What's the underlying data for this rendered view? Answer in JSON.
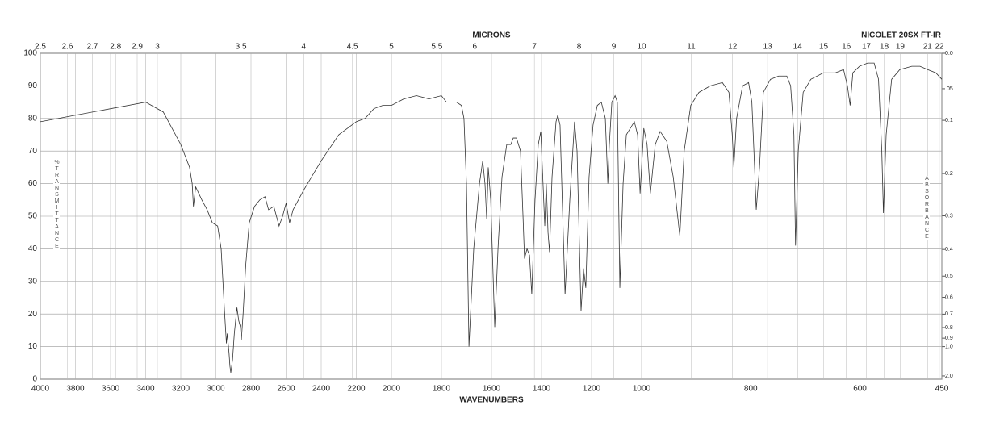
{
  "chart_data": {
    "type": "line",
    "title": "NICOLET 20SX FT-IR",
    "xlabel": "WAVENUMBERS",
    "x2label": "MICRONS",
    "ylabel": "%TRANSMITTANCE",
    "y2label": "ABSORBANCE",
    "xlim": [
      4000,
      450
    ],
    "x_breaks": [
      2000,
      1000
    ],
    "xticks": [
      4000,
      3800,
      3600,
      3400,
      3200,
      3000,
      2800,
      2600,
      2400,
      2200,
      2000,
      1800,
      1600,
      1400,
      1200,
      1000,
      800,
      600,
      450
    ],
    "micron_ticks": [
      2.5,
      2.6,
      2.7,
      2.8,
      2.9,
      3,
      3.5,
      4,
      4.5,
      5,
      5.5,
      6,
      7,
      8,
      9,
      10,
      11,
      12,
      13,
      14,
      15,
      16,
      17,
      18,
      19,
      21,
      22
    ],
    "ylim": [
      0,
      100
    ],
    "yticks": [
      0,
      10,
      20,
      30,
      40,
      50,
      60,
      70,
      80,
      90,
      100
    ],
    "y2ticks": [
      {
        "value": 0,
        "label": "0.0"
      },
      {
        "value": 0.05,
        "label": ".05"
      },
      0.1,
      0.2,
      0.3,
      0.4,
      0.5,
      0.6,
      0.7,
      0.8,
      0.9,
      {
        "value": 1,
        "label": "1.0"
      },
      {
        "value": 2,
        "label": "2.0"
      }
    ],
    "grid": true,
    "color": "#333333",
    "x": [
      4000,
      3400,
      3300,
      3200,
      3150,
      3135,
      3128,
      3115,
      3080,
      3050,
      3020,
      2990,
      2970,
      2950,
      2940,
      2935,
      2925,
      2920,
      2915,
      2905,
      2895,
      2880,
      2870,
      2860,
      2855,
      2845,
      2830,
      2810,
      2780,
      2750,
      2720,
      2700,
      2670,
      2640,
      2620,
      2600,
      2580,
      2560,
      2500,
      2400,
      2300,
      2200,
      2150,
      2100,
      2050,
      2000,
      1950,
      1900,
      1850,
      1800,
      1780,
      1740,
      1720,
      1710,
      1700,
      1690,
      1671,
      1648,
      1635,
      1626,
      1619,
      1613,
      1603,
      1587,
      1574,
      1558,
      1539,
      1523,
      1513,
      1500,
      1484,
      1474,
      1468,
      1458,
      1448,
      1439,
      1426,
      1413,
      1403,
      1394,
      1387,
      1381,
      1374,
      1368,
      1358,
      1342,
      1335,
      1326,
      1306,
      1287,
      1268,
      1258,
      1242,
      1232,
      1223,
      1210,
      1194,
      1177,
      1161,
      1145,
      1135,
      1129,
      1119,
      1106,
      1097,
      1087,
      1074,
      1061,
      1045,
      1029,
      1016,
      1006,
      996,
      990,
      984,
      975,
      966,
      954,
      942,
      930,
      922,
      910,
      895,
      874,
      852,
      840,
      834,
      831,
      826,
      815,
      804,
      798,
      793,
      790,
      784,
      777,
      764,
      749,
      734,
      727,
      721,
      718,
      713,
      704,
      690,
      667,
      645,
      630,
      623,
      618,
      613,
      601,
      586,
      574,
      566,
      560,
      557,
      552,
      542,
      527,
      505,
      490,
      476,
      461,
      450
    ],
    "values": [
      79,
      85,
      82,
      72,
      65,
      60,
      53,
      59,
      55,
      52,
      48,
      47,
      40,
      20,
      11,
      14,
      8,
      4,
      2,
      6,
      14,
      22,
      18,
      16,
      12,
      20,
      35,
      48,
      53,
      55,
      56,
      52,
      53,
      47,
      50,
      54,
      48,
      52,
      58,
      67,
      75,
      79,
      80,
      83,
      84,
      84,
      86,
      87,
      86,
      87,
      85,
      85,
      84,
      80,
      60,
      10,
      40,
      60,
      67,
      60,
      49,
      65,
      55,
      16,
      40,
      62,
      72,
      72,
      74,
      74,
      70,
      50,
      37,
      40,
      38,
      26,
      55,
      72,
      76,
      60,
      47,
      60,
      45,
      39,
      62,
      79,
      81,
      78,
      26,
      55,
      79,
      70,
      21,
      34,
      28,
      62,
      78,
      84,
      85,
      80,
      60,
      72,
      85,
      87,
      85,
      28,
      60,
      75,
      77,
      79,
      75,
      57,
      77,
      72,
      57,
      72,
      76,
      73,
      62,
      44,
      70,
      84,
      88,
      90,
      91,
      88,
      75,
      65,
      80,
      90,
      91,
      85,
      65,
      52,
      65,
      88,
      92,
      93,
      93,
      90,
      75,
      41,
      70,
      88,
      92,
      94,
      94,
      95,
      90,
      84,
      94,
      96,
      97,
      97,
      92,
      70,
      51,
      75,
      92,
      95,
      96,
      96,
      95,
      94,
      92
    ]
  }
}
